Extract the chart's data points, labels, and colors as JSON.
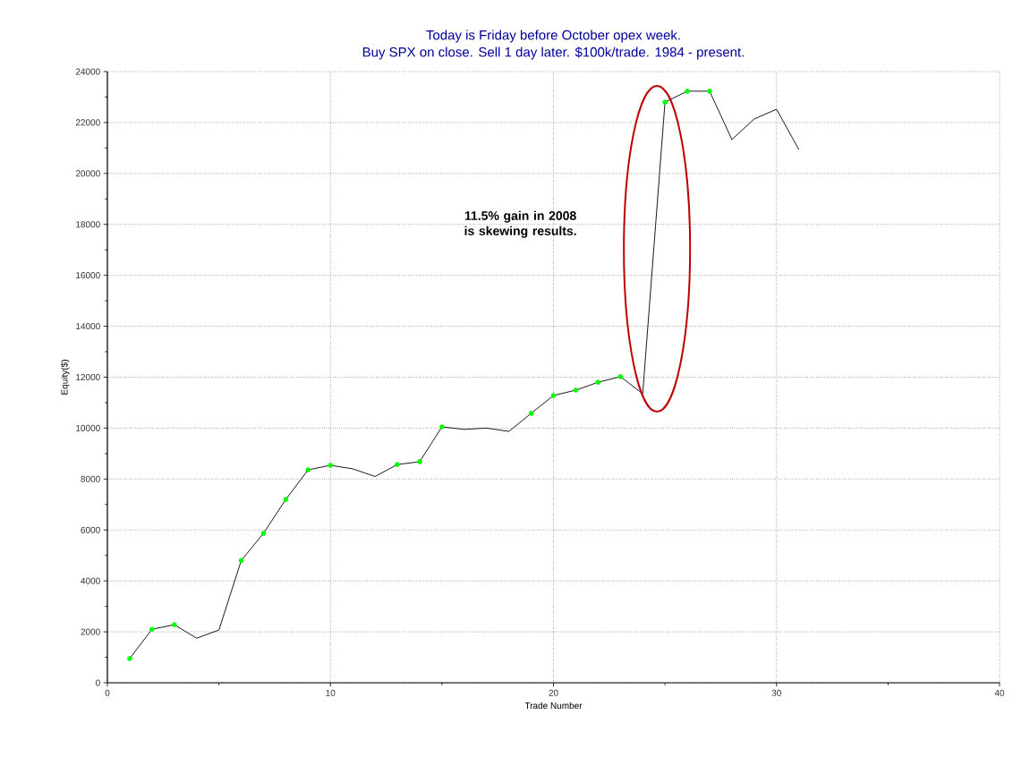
{
  "chart_data": {
    "type": "line",
    "title": "Today is Friday before October opex week.",
    "subtitle": "Buy SPX on close. Sell 1 day later. $100k/trade. 1984 - present.",
    "xlabel": "Trade Number",
    "ylabel": "Equity($)",
    "x": [
      1,
      2,
      3,
      4,
      5,
      6,
      7,
      8,
      9,
      10,
      11,
      12,
      13,
      14,
      15,
      16,
      17,
      18,
      19,
      20,
      21,
      22,
      23,
      24,
      25,
      26,
      27,
      28,
      29,
      30,
      31
    ],
    "series": [
      {
        "color": "#000000",
        "marker": "none",
        "line_style": "solid",
        "values": [
          950,
          2100,
          2280,
          1750,
          2070,
          4800,
          5870,
          7200,
          8360,
          8540,
          8400,
          8100,
          8570,
          8680,
          10050,
          9950,
          10000,
          9870,
          10580,
          11280,
          11490,
          11800,
          12020,
          11350,
          22800,
          23230,
          23230,
          21330,
          22140,
          22520,
          20940
        ]
      },
      {
        "type": "scatter",
        "color": "#00ff00",
        "marker": "circle",
        "x": [
          1,
          2,
          3,
          6,
          7,
          8,
          9,
          10,
          13,
          14,
          15,
          19,
          20,
          21,
          22,
          23,
          25,
          26,
          27
        ],
        "values": [
          950,
          2100,
          2280,
          4800,
          5870,
          7200,
          8360,
          8540,
          8570,
          8680,
          10050,
          10580,
          11280,
          11490,
          11800,
          12020,
          22800,
          23230,
          23230
        ]
      }
    ],
    "xlim": [
      0,
      40
    ],
    "xticks": [
      0,
      10,
      20,
      30,
      40
    ],
    "ylim": [
      0,
      24000
    ],
    "yticks": [
      0,
      2000,
      4000,
      6000,
      8000,
      10000,
      12000,
      14000,
      16000,
      18000,
      20000,
      22000,
      24000
    ],
    "grid": true,
    "annotations": [
      "11.5% gain in 2008 is skewing results."
    ]
  }
}
